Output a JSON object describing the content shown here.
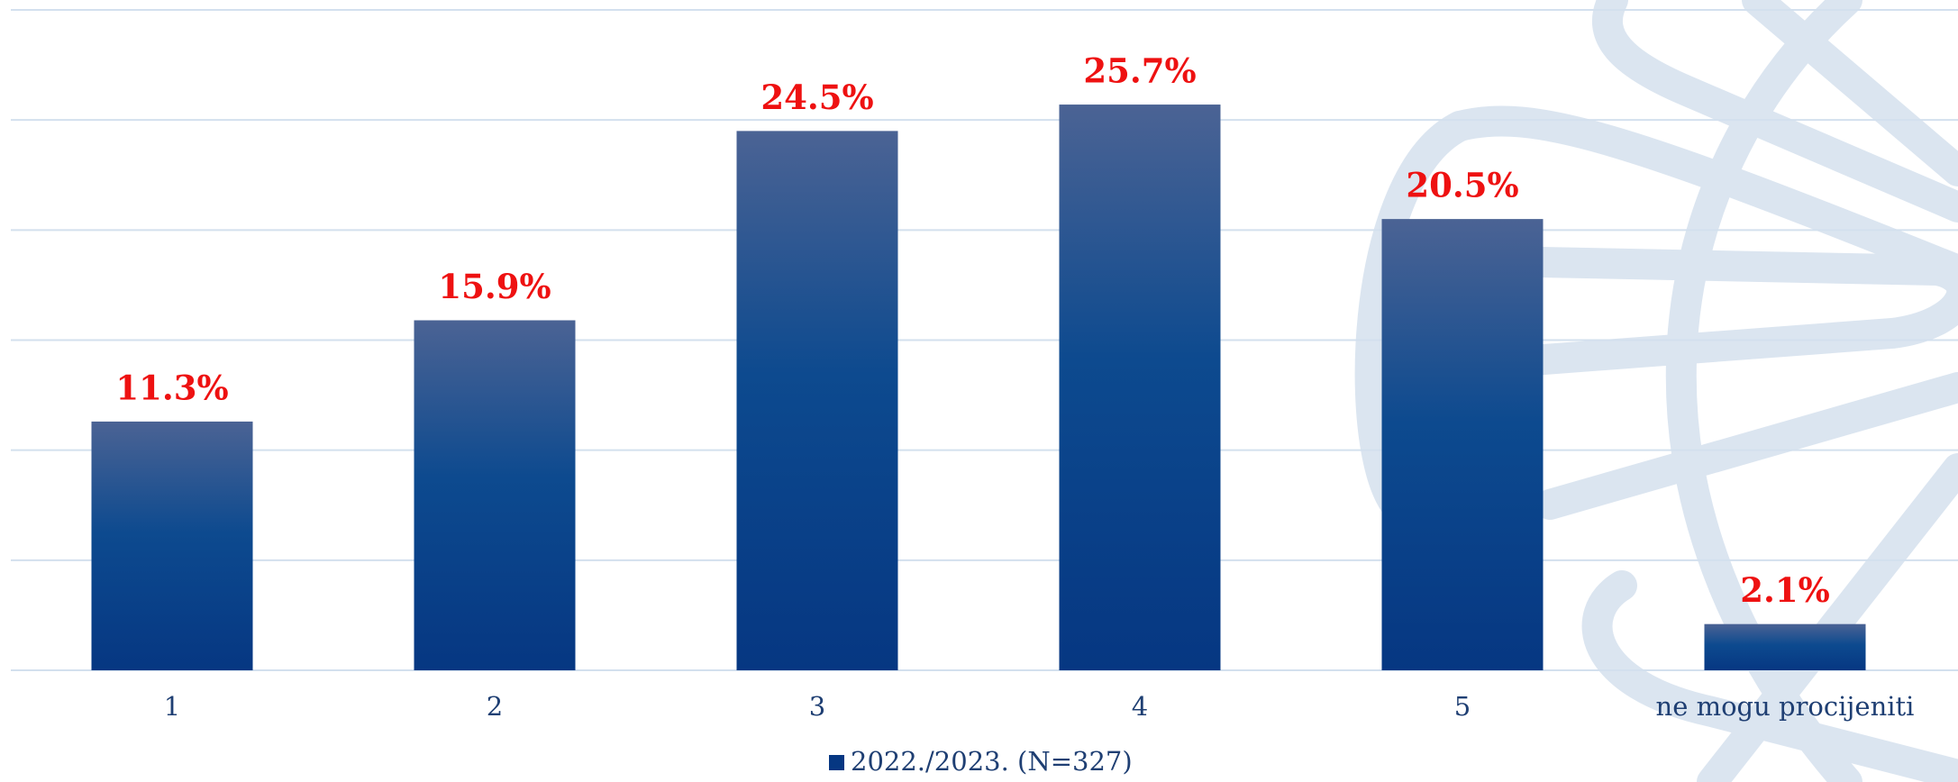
{
  "chart_data": {
    "type": "bar",
    "categories": [
      "1",
      "2",
      "3",
      "4",
      "5",
      "ne mogu procijeniti"
    ],
    "series": [
      {
        "name": "2022./2023. (N=327)",
        "color": "#063782",
        "values": [
          11.3,
          15.9,
          24.5,
          25.7,
          20.5,
          2.1
        ],
        "value_labels": [
          "11.3%",
          "15.9%",
          "24.5%",
          "25.7%",
          "20.5%",
          "2.1%"
        ]
      }
    ],
    "ylim": [
      0,
      30
    ],
    "yticks": [
      0,
      5,
      10,
      15,
      20,
      25,
      30
    ],
    "y_tick_labels": false,
    "grid": true,
    "legend": "bottom"
  }
}
